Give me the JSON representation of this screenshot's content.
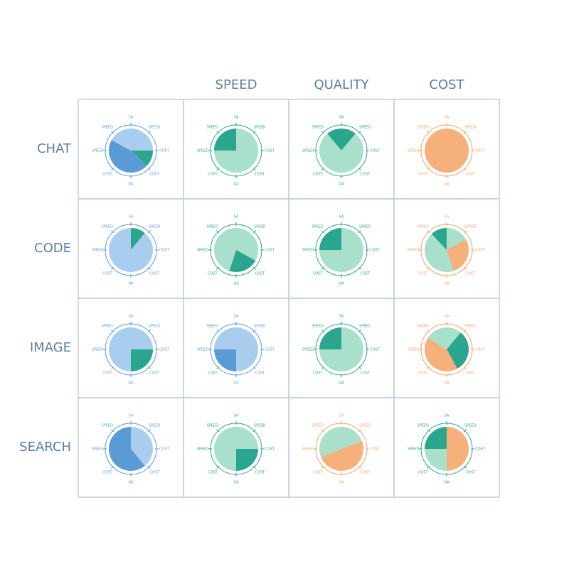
{
  "columns": [
    "SPEED",
    "QUALITY",
    "COST"
  ],
  "rows": [
    "CHAT",
    "CODE",
    "IMAGE",
    "SEARCH"
  ],
  "ring_labels": [
    "SA",
    "SPEED",
    "COST",
    "COST",
    "QA",
    "COST",
    "SPEED",
    "SPEED"
  ],
  "cells": [
    [
      {
        "label_color": "#5b9bd5",
        "slices": [
          {
            "value": 25,
            "color": "#a9cdee"
          },
          {
            "value": 12,
            "color": "#2aa58e"
          },
          {
            "value": 46,
            "color": "#5b9bd5"
          },
          {
            "value": 17,
            "color": "#a9cdee"
          }
        ]
      },
      {
        "label_color": "#2aa58e",
        "slices": [
          {
            "value": 75,
            "color": "#a8e0cc"
          },
          {
            "value": 25,
            "color": "#2aa58e"
          }
        ]
      },
      {
        "label_color": "#2aa58e",
        "slices": [
          {
            "value": 11,
            "color": "#2aa58e"
          },
          {
            "value": 78,
            "color": "#a8e0cc"
          },
          {
            "value": 11,
            "color": "#2aa58e"
          }
        ]
      },
      {
        "label_color": "#f0a060",
        "slices": [
          {
            "value": 100,
            "color": "#f6b07c"
          }
        ]
      }
    ],
    [
      {
        "label_color": "#5b9bd5",
        "slices": [
          {
            "value": 11,
            "color": "#2aa58e"
          },
          {
            "value": 89,
            "color": "#a9cdee"
          }
        ]
      },
      {
        "label_color": "#2aa58e",
        "slices": [
          {
            "value": 33,
            "color": "#a8e0cc"
          },
          {
            "value": 22,
            "color": "#2aa58e"
          },
          {
            "value": 45,
            "color": "#a8e0cc"
          }
        ]
      },
      {
        "label_color": "#2aa58e",
        "slices": [
          {
            "value": 75,
            "color": "#a8e0cc"
          },
          {
            "value": 25,
            "color": "#2aa58e"
          }
        ]
      },
      {
        "label_color": "#f0a060",
        "slices": [
          {
            "value": 17,
            "color": "#a8e0cc"
          },
          {
            "value": 28,
            "color": "#f6b07c"
          },
          {
            "value": 43,
            "color": "#a8e0cc"
          },
          {
            "value": 12,
            "color": "#2aa58e"
          }
        ]
      }
    ],
    [
      {
        "label_color": "#5b9bd5",
        "slices": [
          {
            "value": 25,
            "color": "#a9cdee"
          },
          {
            "value": 25,
            "color": "#2aa58e"
          },
          {
            "value": 50,
            "color": "#a9cdee"
          }
        ]
      },
      {
        "label_color": "#5b9bd5",
        "slices": [
          {
            "value": 50,
            "color": "#a9cdee"
          },
          {
            "value": 25,
            "color": "#5b9bd5"
          },
          {
            "value": 25,
            "color": "#a9cdee"
          }
        ]
      },
      {
        "label_color": "#2aa58e",
        "slices": [
          {
            "value": 75,
            "color": "#a8e0cc"
          },
          {
            "value": 25,
            "color": "#2aa58e"
          }
        ]
      },
      {
        "label_color": "#f0a060",
        "slices": [
          {
            "value": 11,
            "color": "#a8e0cc"
          },
          {
            "value": 31,
            "color": "#2aa58e"
          },
          {
            "value": 42,
            "color": "#f6b07c"
          },
          {
            "value": 16,
            "color": "#a8e0cc"
          }
        ]
      }
    ],
    [
      {
        "label_color": "#5b9bd5",
        "slices": [
          {
            "value": 39,
            "color": "#a9cdee"
          },
          {
            "value": 61,
            "color": "#5b9bd5"
          }
        ]
      },
      {
        "label_color": "#2aa58e",
        "slices": [
          {
            "value": 25,
            "color": "#a8e0cc"
          },
          {
            "value": 25,
            "color": "#2aa58e"
          },
          {
            "value": 50,
            "color": "#a8e0cc"
          }
        ]
      },
      {
        "label_color": "#f0a060",
        "slices": [
          {
            "value": 19,
            "color": "#a8e0cc"
          },
          {
            "value": 50,
            "color": "#f6b07c"
          },
          {
            "value": 31,
            "color": "#a8e0cc"
          }
        ]
      },
      {
        "label_color": "#2aa58e",
        "slices": [
          {
            "value": 50,
            "color": "#f6b07c"
          },
          {
            "value": 25,
            "color": "#a8e0cc"
          },
          {
            "value": 25,
            "color": "#2aa58e"
          }
        ]
      }
    ]
  ]
}
